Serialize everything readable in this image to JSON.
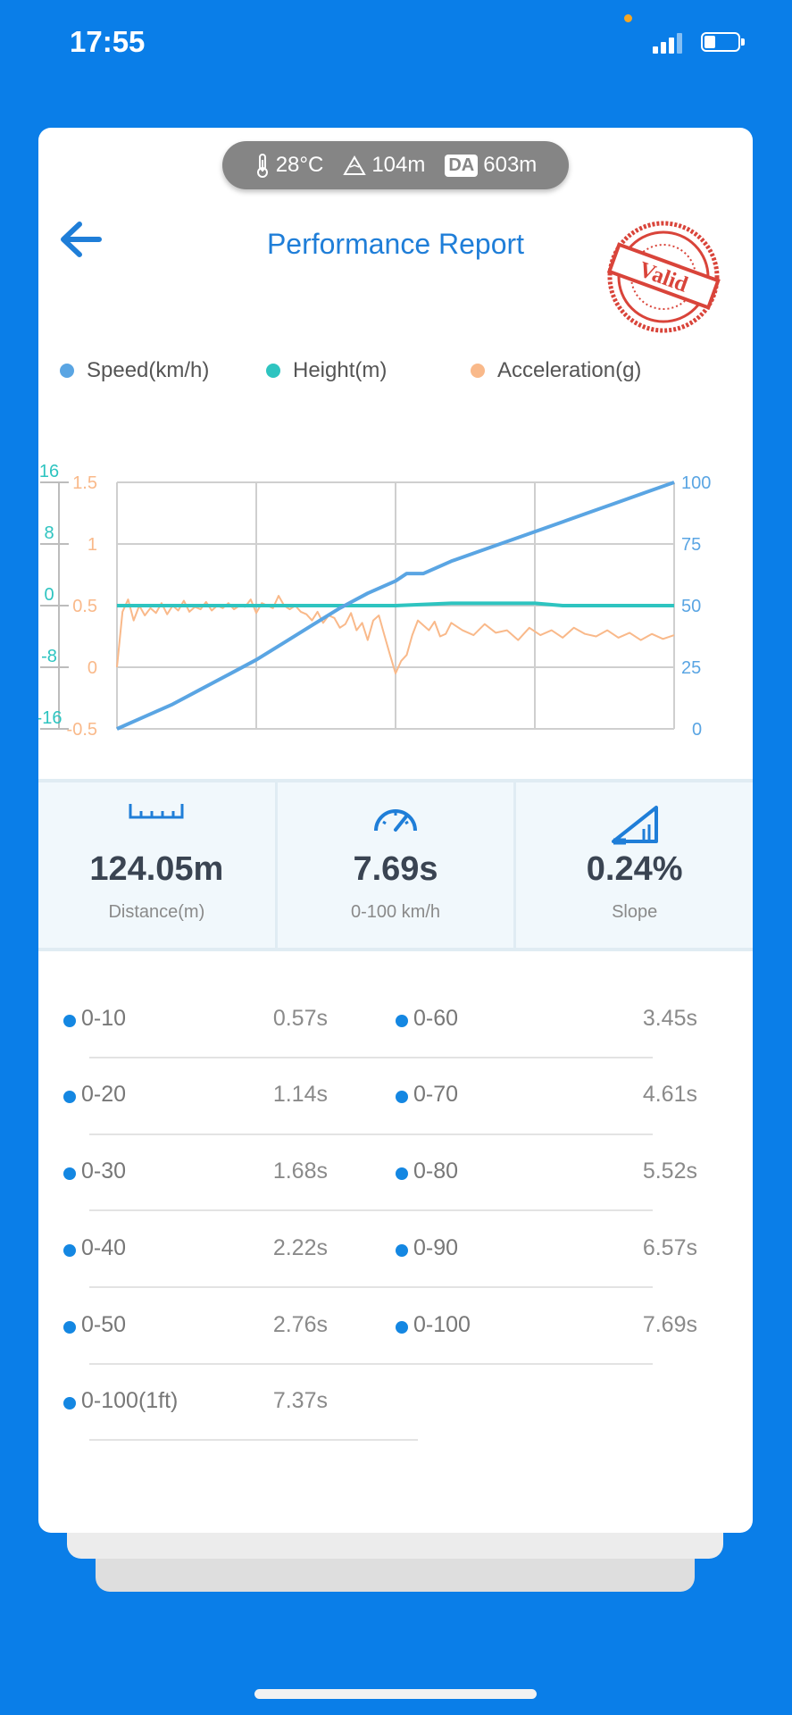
{
  "status_bar": {
    "time": "17:55"
  },
  "env": {
    "temperature": "28°C",
    "altitude": "104m",
    "da_label": "DA",
    "da_value": "603m"
  },
  "header": {
    "title": "Performance Report",
    "stamp_text": "Valid"
  },
  "legend": [
    {
      "label": "Speed(km/h)",
      "color": "#5aa5e3"
    },
    {
      "label": "Height(m)",
      "color": "#2ec4c0"
    },
    {
      "label": "Acceleration(g)",
      "color": "#f9b98a"
    }
  ],
  "chart_data": {
    "type": "line",
    "x_ticks": 4,
    "y_axes": {
      "height": {
        "ticks": [
          "16",
          "8",
          "0",
          "-8",
          "-16"
        ],
        "range": [
          -16,
          16
        ],
        "color": "#2ec4c0"
      },
      "acceleration": {
        "ticks": [
          "1.5",
          "1",
          "0.5",
          "0",
          "-0.5"
        ],
        "range": [
          -0.5,
          1.5
        ],
        "color": "#f9b98a"
      },
      "speed": {
        "ticks": [
          "100",
          "75",
          "50",
          "25",
          "0"
        ],
        "range": [
          0,
          100
        ],
        "color": "#5aa5e3"
      }
    },
    "series": [
      {
        "name": "Speed(km/h)",
        "axis": "speed",
        "color": "#5aa5e3",
        "x": [
          0,
          0.05,
          0.1,
          0.15,
          0.2,
          0.25,
          0.3,
          0.35,
          0.4,
          0.45,
          0.5,
          0.52,
          0.55,
          0.6,
          0.65,
          0.7,
          0.75,
          0.8,
          0.85,
          0.9,
          0.95,
          1.0
        ],
        "y": [
          0,
          5,
          10,
          16,
          22,
          28,
          35,
          42,
          49,
          55,
          60,
          63,
          63,
          68,
          72,
          76,
          80,
          84,
          88,
          92,
          96,
          100
        ]
      },
      {
        "name": "Height(m)",
        "axis": "height",
        "color": "#2ec4c0",
        "x": [
          0,
          0.25,
          0.5,
          0.6,
          0.75,
          0.8,
          1.0
        ],
        "y": [
          0,
          0,
          0,
          0.3,
          0.3,
          0,
          0
        ]
      },
      {
        "name": "Acceleration(g)",
        "axis": "acceleration",
        "color": "#f9b98a",
        "x": [
          0,
          0.01,
          0.02,
          0.03,
          0.04,
          0.05,
          0.06,
          0.07,
          0.08,
          0.09,
          0.1,
          0.11,
          0.12,
          0.13,
          0.14,
          0.15,
          0.16,
          0.17,
          0.18,
          0.19,
          0.2,
          0.21,
          0.22,
          0.23,
          0.24,
          0.25,
          0.26,
          0.27,
          0.28,
          0.29,
          0.3,
          0.31,
          0.32,
          0.33,
          0.34,
          0.35,
          0.36,
          0.37,
          0.38,
          0.39,
          0.4,
          0.41,
          0.42,
          0.43,
          0.44,
          0.45,
          0.46,
          0.47,
          0.48,
          0.49,
          0.5,
          0.51,
          0.52,
          0.53,
          0.54,
          0.55,
          0.56,
          0.57,
          0.58,
          0.59,
          0.6,
          0.62,
          0.64,
          0.66,
          0.68,
          0.7,
          0.72,
          0.74,
          0.76,
          0.78,
          0.8,
          0.82,
          0.84,
          0.86,
          0.88,
          0.9,
          0.92,
          0.94,
          0.96,
          0.98,
          1.0
        ],
        "y": [
          0,
          0.45,
          0.55,
          0.38,
          0.5,
          0.42,
          0.48,
          0.44,
          0.52,
          0.43,
          0.5,
          0.46,
          0.54,
          0.45,
          0.49,
          0.47,
          0.53,
          0.46,
          0.5,
          0.48,
          0.52,
          0.47,
          0.5,
          0.49,
          0.55,
          0.44,
          0.52,
          0.5,
          0.48,
          0.58,
          0.5,
          0.47,
          0.5,
          0.45,
          0.43,
          0.38,
          0.45,
          0.36,
          0.42,
          0.4,
          0.32,
          0.35,
          0.44,
          0.3,
          0.36,
          0.22,
          0.38,
          0.42,
          0.26,
          0.1,
          -0.05,
          0.05,
          0.1,
          0.26,
          0.38,
          0.34,
          0.3,
          0.37,
          0.25,
          0.27,
          0.36,
          0.3,
          0.26,
          0.35,
          0.28,
          0.3,
          0.22,
          0.32,
          0.26,
          0.3,
          0.24,
          0.32,
          0.27,
          0.25,
          0.3,
          0.24,
          0.28,
          0.22,
          0.27,
          0.23,
          0.26
        ]
      }
    ]
  },
  "stats": [
    {
      "value": "124.05m",
      "label": "Distance(m)",
      "icon": "ruler-icon"
    },
    {
      "value": "7.69s",
      "label": "0-100 km/h",
      "icon": "speedometer-icon"
    },
    {
      "value": "0.24%",
      "label": "Slope",
      "icon": "slope-icon"
    }
  ],
  "splits_left": [
    {
      "range": "0-10",
      "time": "0.57s"
    },
    {
      "range": "0-20",
      "time": "1.14s"
    },
    {
      "range": "0-30",
      "time": "1.68s"
    },
    {
      "range": "0-40",
      "time": "2.22s"
    },
    {
      "range": "0-50",
      "time": "2.76s"
    },
    {
      "range": "0-100(1ft)",
      "time": "7.37s"
    }
  ],
  "splits_right": [
    {
      "range": "0-60",
      "time": "3.45s"
    },
    {
      "range": "0-70",
      "time": "4.61s"
    },
    {
      "range": "0-80",
      "time": "5.52s"
    },
    {
      "range": "0-90",
      "time": "6.57s"
    },
    {
      "range": "0-100",
      "time": "7.69s"
    }
  ]
}
